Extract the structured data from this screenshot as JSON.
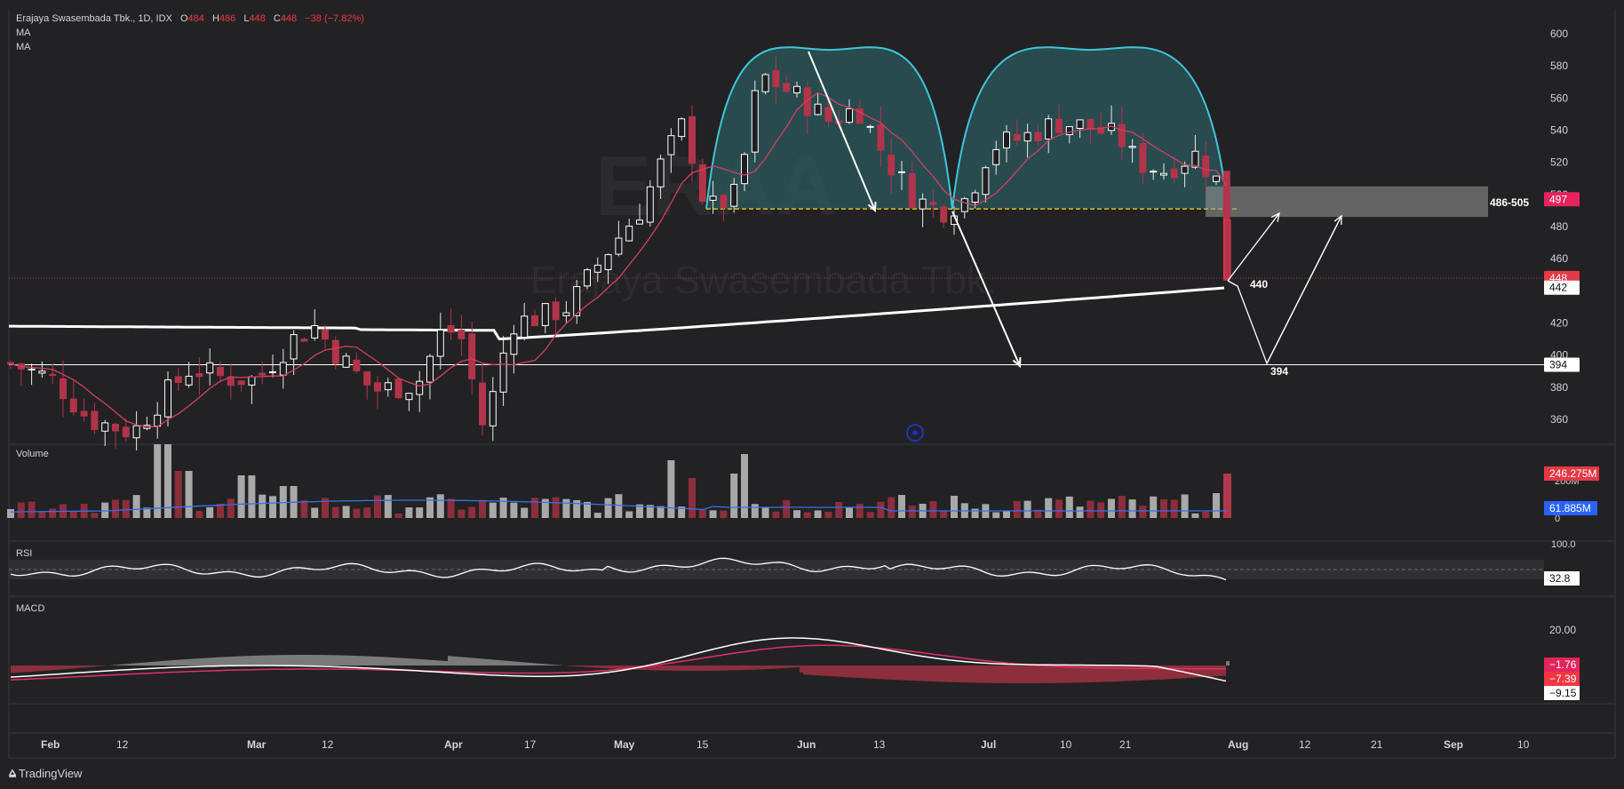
{
  "header": {
    "symbol_line": "Erajaya Swasembada Tbk., 1D, IDX",
    "o_label": "O",
    "o_value": "484",
    "h_label": "H",
    "h_value": "486",
    "l_label": "L",
    "l_value": "448",
    "c_label": "C",
    "c_value": "448",
    "change": "−38 (−7.82%)",
    "ma1": "MA",
    "ma2": "MA"
  },
  "watermark": {
    "ticker": "ERAA",
    "name": "Erajaya Swasembada Tbk."
  },
  "panes": {
    "volume": "Volume",
    "rsi": "RSI",
    "macd": "MACD"
  },
  "brand": "TradingView",
  "colors": {
    "background": "#222224",
    "bull": "#ffffff",
    "bear": "#b2344a",
    "ma_short": "#d33f63",
    "ma_long": "#ffffff",
    "arc": "#3fc6dc",
    "arc_fill": "#2b5a5c",
    "volume_ma": "#3a6ee8",
    "macd_signal": "#e0306a",
    "label_red": "#f23645",
    "label_blue": "#2962ff"
  },
  "chart_data": [
    {
      "type": "candlestick",
      "pane": "price",
      "ylim": [
        345,
        610
      ],
      "yticks": [
        360,
        380,
        400,
        420,
        440,
        460,
        480,
        500,
        520,
        540,
        560,
        580,
        600
      ],
      "xticks": [
        "Feb",
        "12",
        "Mar",
        "12",
        "Apr",
        "17",
        "May",
        "15",
        "Jun",
        "13",
        "Jul",
        "10",
        "21",
        "Aug",
        "12",
        "21",
        "Sep",
        "10"
      ],
      "last_bar": {
        "open": 484,
        "high": 486,
        "low": 448,
        "close": 448
      },
      "price_labels": [
        {
          "value": 497,
          "text": "497"
        },
        {
          "value": 448,
          "text": "448"
        },
        {
          "value": 442,
          "text": "442"
        },
        {
          "value": 394,
          "text": "394"
        }
      ],
      "annotations": [
        "440",
        "394",
        "486-505"
      ],
      "zone": [
        486,
        505
      ],
      "neckline": 491,
      "horizontal_line": 394,
      "ma_long_last": 442
    },
    {
      "type": "bar",
      "pane": "volume",
      "labels": [
        {
          "text": "246.275M"
        },
        {
          "text": "61.885M"
        }
      ],
      "axis_labels": [
        "200M",
        "0"
      ]
    },
    {
      "type": "line",
      "pane": "rsi",
      "ylim": [
        0,
        100
      ],
      "last_value": 32.8,
      "labels": [
        {
          "text": "32.8"
        }
      ],
      "axis_labels": [
        "100.0"
      ]
    },
    {
      "type": "line",
      "pane": "macd",
      "labels": [
        {
          "text": "−1.76"
        },
        {
          "text": "−7.39"
        },
        {
          "text": "−9.15"
        }
      ],
      "axis_labels": [
        "20.00"
      ]
    }
  ]
}
